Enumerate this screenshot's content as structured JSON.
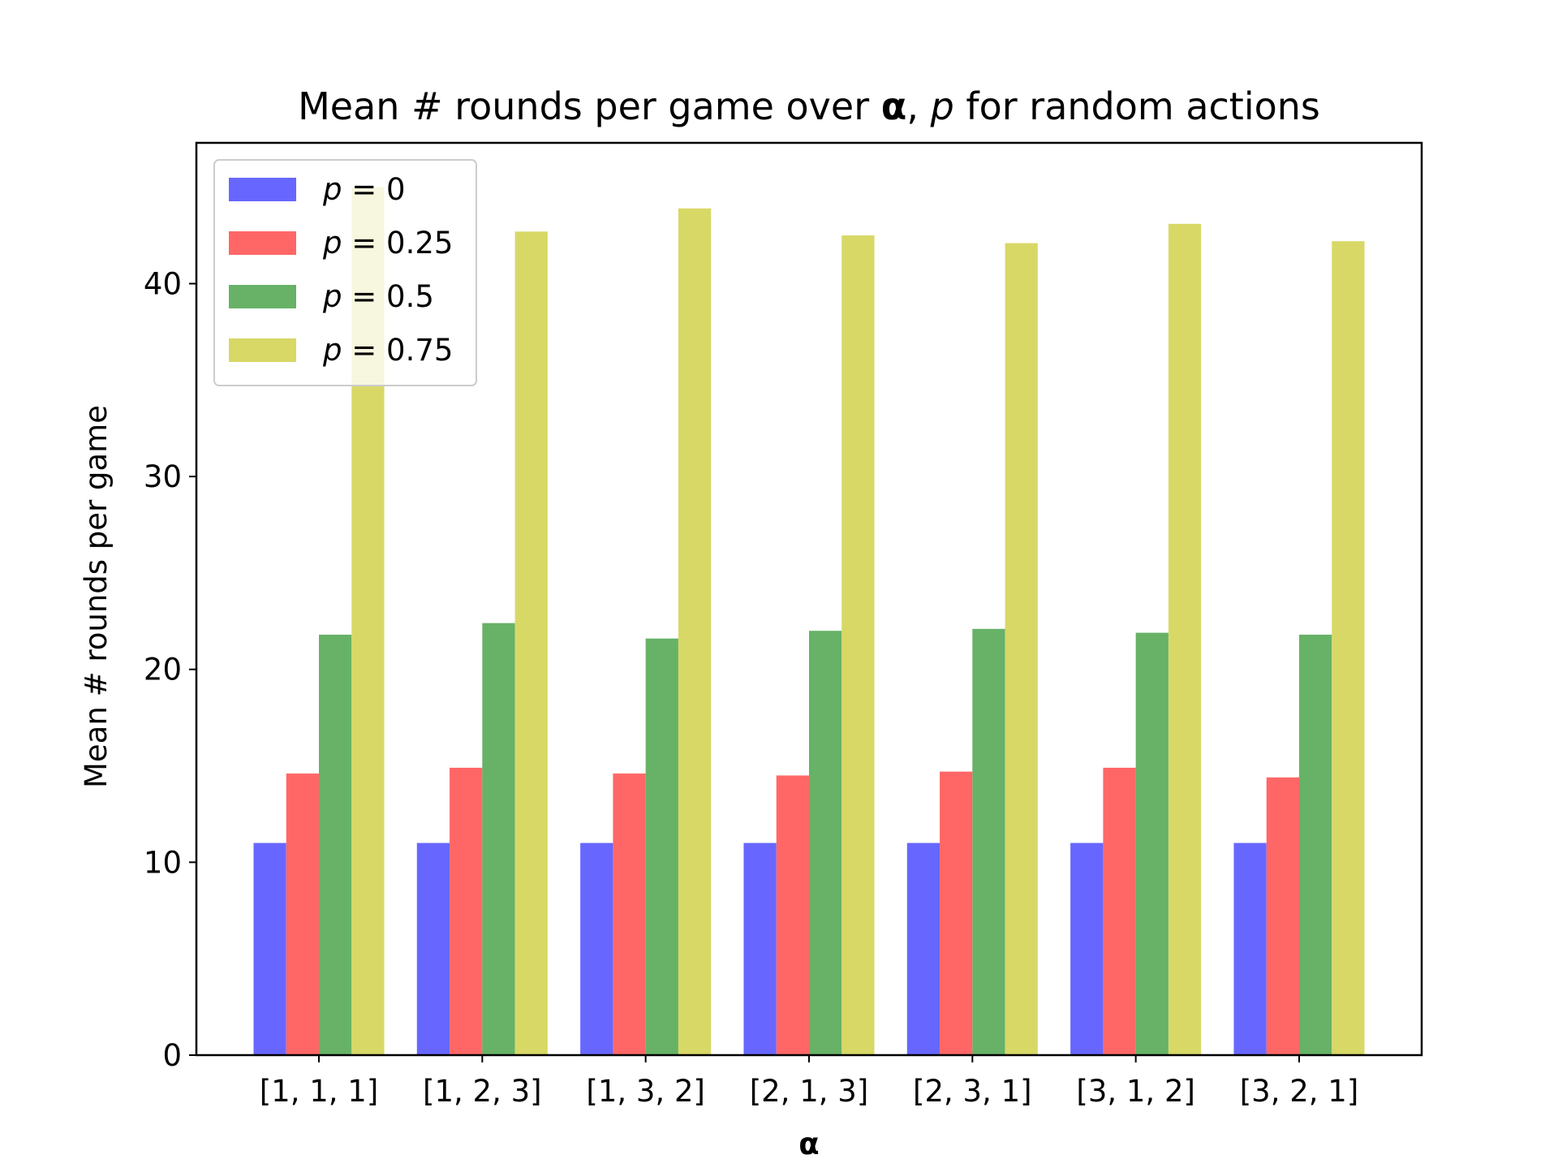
{
  "chart_data": {
    "type": "bar",
    "title": {
      "prefix": "Mean # rounds per game over ",
      "bold_symbol": "α",
      "separator": ", ",
      "italic_symbol": "p",
      "suffix": " for random actions"
    },
    "xlabel": "α",
    "ylabel": "Mean # rounds per game",
    "categories": [
      "[1, 1, 1]",
      "[1, 2, 3]",
      "[1, 3, 2]",
      "[2, 1, 3]",
      "[2, 3, 1]",
      "[3, 1, 2]",
      "[3, 2, 1]"
    ],
    "ylim": [
      0,
      47.3
    ],
    "yticks": [
      0,
      10,
      20,
      30,
      40
    ],
    "grid": false,
    "legend_position": "upper-left",
    "series": [
      {
        "name": "p = 0",
        "legend_symbol": "p",
        "legend_value": "0",
        "color": "#6767ff",
        "values": [
          11.0,
          11.0,
          11.0,
          11.0,
          11.0,
          11.0,
          11.0
        ]
      },
      {
        "name": "p = 0.25",
        "legend_symbol": "p",
        "legend_value": "0.25",
        "color": "#ff6767",
        "values": [
          14.6,
          14.9,
          14.6,
          14.5,
          14.7,
          14.9,
          14.4
        ]
      },
      {
        "name": "p = 0.5",
        "legend_symbol": "p",
        "legend_value": "0.5",
        "color": "#67b267",
        "values": [
          21.8,
          22.4,
          21.6,
          22.0,
          22.1,
          21.9,
          21.8
        ]
      },
      {
        "name": "p = 0.75",
        "legend_symbol": "p",
        "legend_value": "0.75",
        "color": "#d8d867",
        "values": [
          45.0,
          42.7,
          43.9,
          42.5,
          42.1,
          43.1,
          42.2
        ]
      }
    ]
  }
}
